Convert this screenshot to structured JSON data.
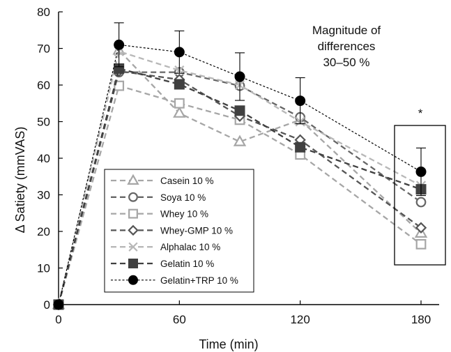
{
  "chart_data": {
    "type": "line",
    "xlabel": "Time (min)",
    "ylabel": "Δ Satiety (mmVAS)",
    "xlim": [
      0,
      180
    ],
    "ylim": [
      0,
      80
    ],
    "x_ticks": [
      0,
      60,
      120,
      180
    ],
    "y_ticks": [
      0,
      10,
      20,
      30,
      40,
      50,
      60,
      70,
      80
    ],
    "grid": false,
    "legend_position": "bottom-left",
    "annotation_lines": [
      "Magnitude of",
      "differences",
      "30–50 %"
    ],
    "significance_marker": "*",
    "x": [
      0,
      30,
      60,
      90,
      120,
      180
    ],
    "series": [
      {
        "name": "Casein 10 %",
        "marker": "triangle-open",
        "color": "#a6a6a6",
        "dash": "dashed",
        "values": [
          0,
          69.5,
          52.3,
          44.5,
          50.5,
          19.5
        ],
        "error": [
          0,
          0,
          0,
          0,
          0,
          0
        ]
      },
      {
        "name": "Soya 10 %",
        "marker": "circle-open",
        "color": "#666666",
        "dash": "dashed",
        "values": [
          0,
          63.5,
          63.5,
          59.8,
          51.2,
          28.0
        ],
        "error": [
          0,
          0,
          0,
          0,
          0,
          0
        ]
      },
      {
        "name": "Whey 10 %",
        "marker": "square-open",
        "color": "#a6a6a6",
        "dash": "dashed",
        "values": [
          0,
          59.8,
          55.0,
          50.5,
          41.0,
          16.5
        ],
        "error": [
          0,
          0,
          0,
          0,
          0,
          0
        ]
      },
      {
        "name": "Whey-GMP 10 %",
        "marker": "diamond-open",
        "color": "#555555",
        "dash": "dashed",
        "values": [
          0,
          63.8,
          61.5,
          51.5,
          45.0,
          21.0
        ],
        "error": [
          0,
          0,
          0,
          0,
          0,
          0
        ]
      },
      {
        "name": "Alphalac 10 %",
        "marker": "x",
        "color": "#b8b8b8",
        "dash": "dashed",
        "values": [
          0,
          69.2,
          64.0,
          60.0,
          50.0,
          32.5
        ],
        "error": [
          0,
          0,
          0,
          0,
          0,
          0
        ]
      },
      {
        "name": "Gelatin 10 %",
        "marker": "square-filled",
        "color": "#404040",
        "dash": "dashed",
        "values": [
          0,
          64.5,
          60.2,
          53.0,
          43.0,
          31.5
        ],
        "error": [
          0,
          0,
          0,
          0,
          0,
          0
        ]
      },
      {
        "name": "Gelatin+TRP 10 %",
        "marker": "circle-filled",
        "color": "#000000",
        "dash": "dotted",
        "values": [
          0,
          71.0,
          69.0,
          62.3,
          55.7,
          36.3
        ],
        "error": [
          0,
          6.0,
          5.8,
          6.5,
          6.3,
          6.5
        ]
      }
    ]
  }
}
